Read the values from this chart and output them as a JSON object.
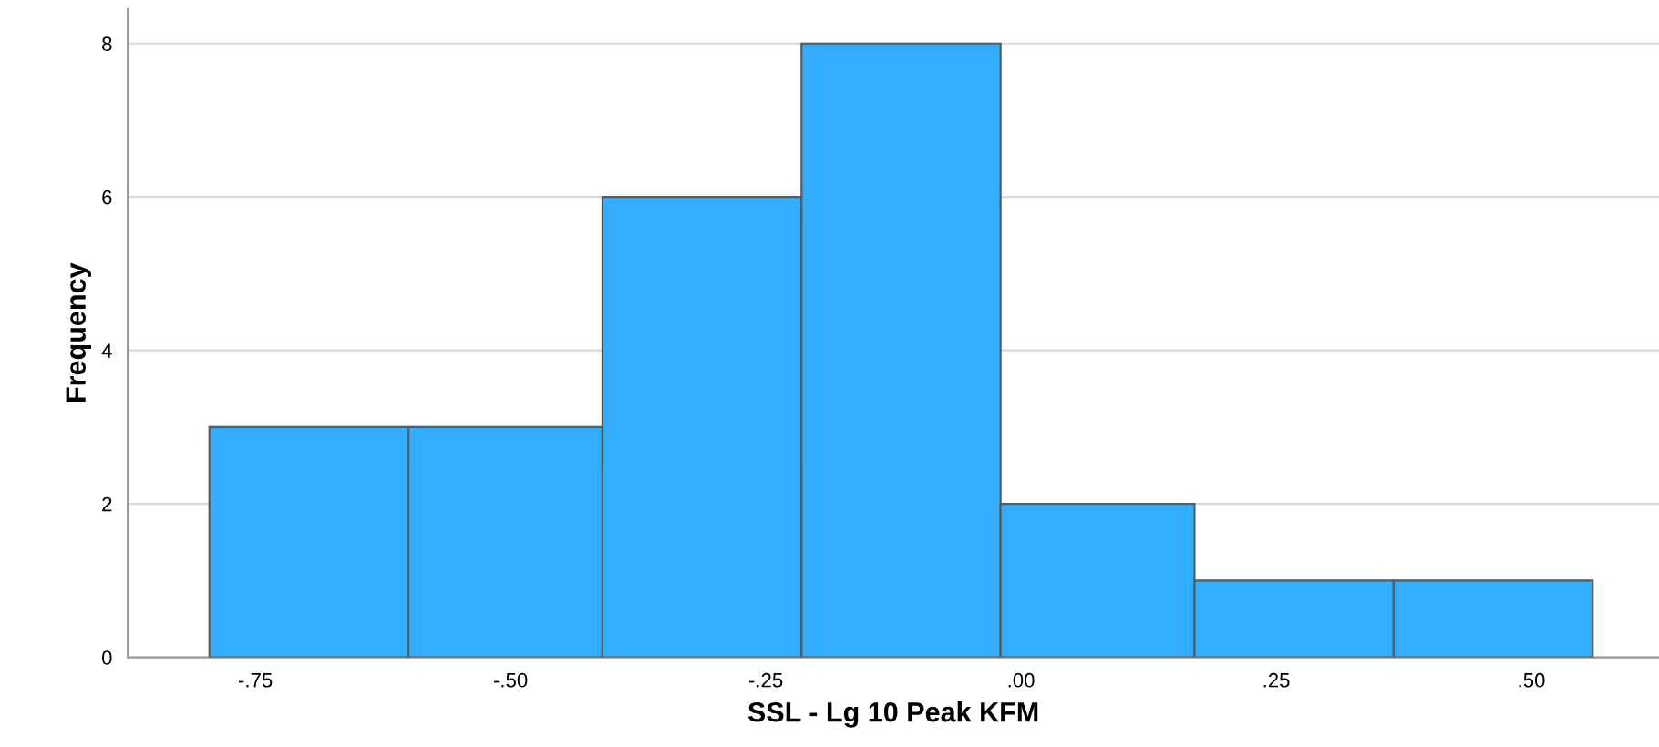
{
  "chart_data": {
    "type": "histogram",
    "xlabel": "SSL - Lg 10 Peak KFM",
    "ylabel": "Frequency",
    "bins": [
      -0.795,
      -0.6,
      -0.41,
      -0.215,
      -0.02,
      0.17,
      0.365,
      0.56
    ],
    "values": [
      3,
      3,
      6,
      8,
      2,
      1,
      1
    ],
    "color": "#33adff",
    "xlim": [
      -0.875,
      0.625
    ],
    "xticks": [
      {
        "value": -0.75,
        "label": "-.75"
      },
      {
        "value": -0.5,
        "label": "-.50"
      },
      {
        "value": -0.25,
        "label": "-.25"
      },
      {
        "value": 0,
        "label": ".00"
      },
      {
        "value": 0.25,
        "label": ".25"
      },
      {
        "value": 0.5,
        "label": ".50"
      }
    ],
    "ylim": [
      0,
      8.45
    ],
    "yticks": [
      0,
      2,
      4,
      6,
      8
    ],
    "grid": "y"
  }
}
